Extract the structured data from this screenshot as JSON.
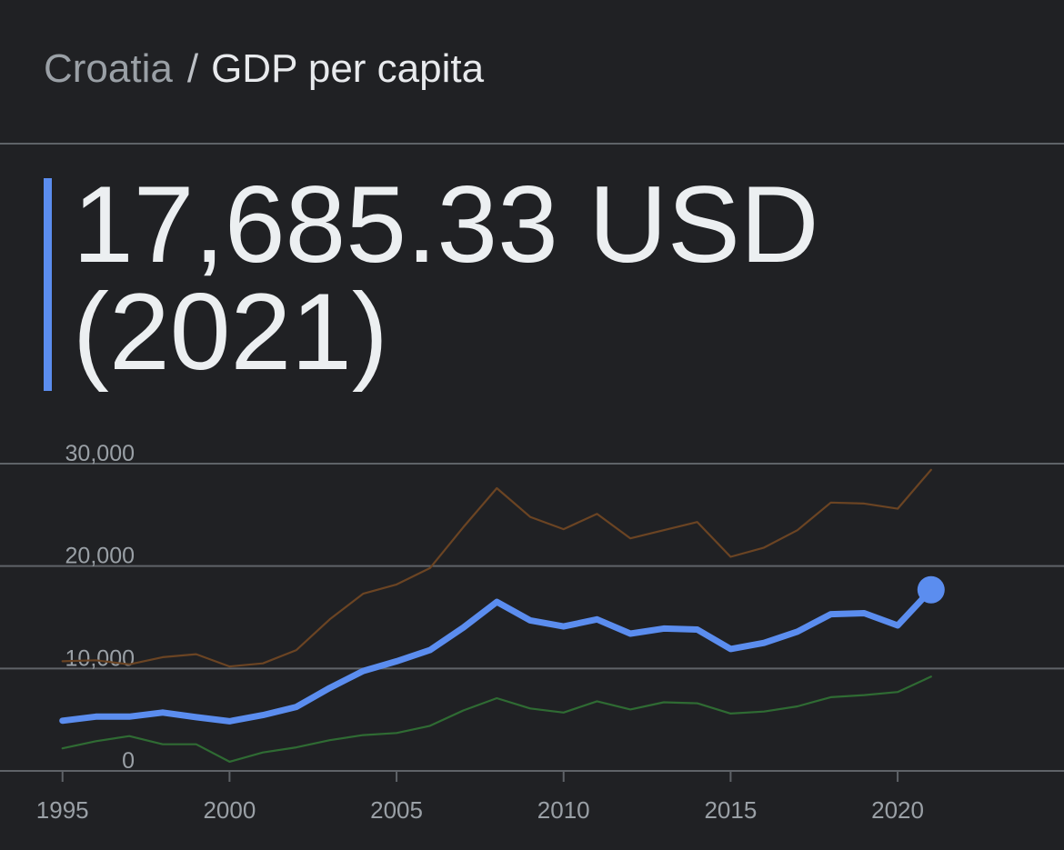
{
  "header": {
    "country": "Croatia",
    "separator": "/",
    "metric": "GDP per capita"
  },
  "headline": {
    "value": "17,685.33 USD",
    "year": "(2021)"
  },
  "colors": {
    "background": "#202124",
    "accent": "#5b8def",
    "high_series": "#6b4423",
    "low_series": "#2f6b33",
    "grid": "#5f6368",
    "tick_text": "#9aa0a6"
  },
  "chart_data": {
    "type": "line",
    "title": "",
    "xlabel": "",
    "ylabel": "",
    "ylim": [
      0,
      30000
    ],
    "y_ticks": [
      0,
      10000,
      20000,
      30000
    ],
    "y_tick_labels": [
      "0",
      "10,000",
      "20,000",
      "30,000"
    ],
    "x_ticks": [
      1995,
      2000,
      2005,
      2010,
      2015,
      2020
    ],
    "x_tick_labels": [
      "1995",
      "2000",
      "2005",
      "2010",
      "2015",
      "2020"
    ],
    "xlim": [
      1994,
      2024
    ],
    "grid": true,
    "x": [
      1995,
      1996,
      1997,
      1998,
      1999,
      2000,
      2001,
      2002,
      2003,
      2004,
      2005,
      2006,
      2007,
      2008,
      2009,
      2010,
      2011,
      2012,
      2013,
      2014,
      2015,
      2016,
      2017,
      2018,
      2019,
      2020,
      2021
    ],
    "series": [
      {
        "role": "high",
        "color": "#6b4423",
        "values": [
          10700,
          10800,
          10400,
          11100,
          11400,
          10200,
          10500,
          11800,
          14800,
          17300,
          18200,
          19800,
          23800,
          27600,
          24800,
          23600,
          25100,
          22700,
          23500,
          24300,
          20900,
          21800,
          23500,
          26200,
          26100,
          25600,
          29400
        ]
      },
      {
        "role": "main",
        "color": "#5b8def",
        "values": [
          4900,
          5300,
          5300,
          5700,
          5250,
          4850,
          5450,
          6250,
          8100,
          9750,
          10700,
          11800,
          14000,
          16500,
          14700,
          14100,
          14800,
          13400,
          13900,
          13800,
          11900,
          12500,
          13600,
          15300,
          15400,
          14200,
          17685.33
        ]
      },
      {
        "role": "low",
        "color": "#2f6b33",
        "values": [
          2200,
          2900,
          3400,
          2600,
          2600,
          900,
          1800,
          2300,
          3000,
          3500,
          3700,
          4400,
          5900,
          7100,
          6100,
          5700,
          6800,
          6000,
          6700,
          6600,
          5600,
          5800,
          6300,
          7200,
          7400,
          7700,
          9200
        ]
      }
    ]
  }
}
